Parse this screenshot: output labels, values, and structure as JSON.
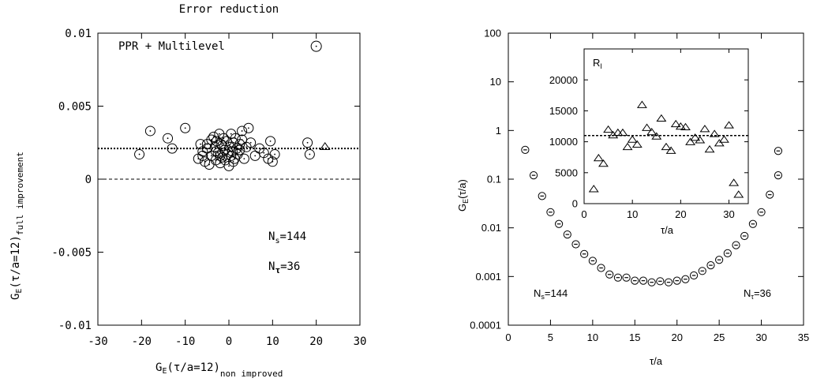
{
  "chart_data": [
    {
      "type": "scatter",
      "title": "Error reduction",
      "xlabel": "G_E(τ/a=12) non improved",
      "xlabel_parts": {
        "main": "G",
        "sub1": "E",
        "mid": "(τ/a=12)",
        "sub2": "non improved"
      },
      "ylabel": "G_E(τ/a=12) full improvement",
      "ylabel_parts": {
        "main": "G",
        "sub1": "E",
        "mid": "(τ/a=12)",
        "sub2": "full improvement"
      },
      "xlim": [
        -30,
        30
      ],
      "ylim": [
        -0.01,
        0.01
      ],
      "xticks": [
        -30,
        -20,
        -10,
        0,
        10,
        20,
        30
      ],
      "yticks": [
        -0.01,
        -0.005,
        0,
        0.005,
        0.01
      ],
      "xtick_labels": [
        "-30",
        "-20",
        "-10",
        "0",
        "10",
        "20",
        "30"
      ],
      "ytick_labels": [
        "-0.01",
        "-0.005",
        "0",
        "0.005",
        "0.01"
      ],
      "hlines": [
        {
          "y": 0.0021,
          "style": "dotted",
          "width": 2
        },
        {
          "y": 0.0,
          "style": "dashed",
          "width": 1
        }
      ],
      "annotations": [
        {
          "id": "legend",
          "text": "PPR + Multilevel"
        },
        {
          "id": "ns",
          "main": "N",
          "sub": "s",
          "rest": "=144"
        },
        {
          "id": "nt",
          "main": "N",
          "sub": "τ",
          "rest": "=36"
        }
      ],
      "legend_marker": {
        "x": 20,
        "y": 0.0091,
        "marker": "circle-dot"
      },
      "series": [
        {
          "marker": "circle-dot",
          "points": [
            [
              -20.5,
              0.0017
            ],
            [
              -18,
              0.0033
            ],
            [
              -14,
              0.0028
            ],
            [
              -13,
              0.0021
            ],
            [
              -10,
              0.0035
            ],
            [
              -7,
              0.0014
            ],
            [
              -6.5,
              0.0024
            ],
            [
              -6,
              0.0019
            ],
            [
              -5.5,
              0.0012
            ],
            [
              -5,
              0.0021
            ],
            [
              -4.5,
              0.001
            ],
            [
              -4,
              0.0016
            ],
            [
              -3.5,
              0.0029
            ],
            [
              -3.2,
              0.0022
            ],
            [
              -3,
              0.0013
            ],
            [
              -2.8,
              0.0026
            ],
            [
              -2.5,
              0.0018
            ],
            [
              -2.2,
              0.0031
            ],
            [
              -2,
              0.0011
            ],
            [
              -1.8,
              0.0024
            ],
            [
              -1.5,
              0.0015
            ],
            [
              -1.2,
              0.0028
            ],
            [
              -1,
              0.002
            ],
            [
              -0.8,
              0.0013
            ],
            [
              -0.5,
              0.0026
            ],
            [
              -0.3,
              0.0017
            ],
            [
              0,
              0.0009
            ],
            [
              0.2,
              0.0022
            ],
            [
              0.5,
              0.0031
            ],
            [
              0.8,
              0.0019
            ],
            [
              1,
              0.0025
            ],
            [
              1.3,
              0.0014
            ],
            [
              1.5,
              0.0028
            ],
            [
              1.8,
              0.0021
            ],
            [
              2,
              0.0017
            ],
            [
              2.5,
              0.0024
            ],
            [
              3,
              0.0033
            ],
            [
              3.5,
              0.0014
            ],
            [
              4,
              0.0022
            ],
            [
              4.5,
              0.0035
            ],
            [
              5,
              0.0025
            ],
            [
              6,
              0.0016
            ],
            [
              7,
              0.0021
            ],
            [
              8,
              0.0018
            ],
            [
              9,
              0.0014
            ],
            [
              9.5,
              0.0026
            ],
            [
              10,
              0.0012
            ],
            [
              10.5,
              0.0017
            ],
            [
              18,
              0.0025
            ],
            [
              18.5,
              0.0017
            ],
            [
              -5,
              0.0024
            ],
            [
              -3,
              0.0019
            ],
            [
              -1.5,
              0.0023
            ],
            [
              0.5,
              0.0016
            ],
            [
              2.5,
              0.002
            ],
            [
              -4,
              0.0027
            ],
            [
              1,
              0.0012
            ],
            [
              -2,
              0.0016
            ],
            [
              3,
              0.0027
            ],
            [
              -6,
              0.0016
            ]
          ]
        },
        {
          "marker": "triangle",
          "points": [
            [
              22,
              0.0022
            ]
          ]
        }
      ]
    },
    {
      "type": "scatter",
      "xlabel": "τ/a",
      "ylabel": "G_E(τ/a)",
      "ylabel_parts": {
        "main": "G",
        "sub1": "E",
        "mid": "(τ/a)"
      },
      "xscale": "linear",
      "yscale": "log",
      "xlim": [
        0,
        35
      ],
      "ylim": [
        0.0001,
        100
      ],
      "xticks": [
        0,
        5,
        10,
        15,
        20,
        25,
        30,
        35
      ],
      "yticks": [
        0.0001,
        0.001,
        0.01,
        0.1,
        1,
        10,
        100
      ],
      "xtick_labels": [
        "0",
        "5",
        "10",
        "15",
        "20",
        "25",
        "30",
        "35"
      ],
      "ytick_labels": [
        "0.0001",
        "0.001",
        "0.01",
        "0.1",
        "1",
        "10",
        "100"
      ],
      "annotations": [
        {
          "id": "ns",
          "main": "N",
          "sub": "s",
          "rest": "=144"
        },
        {
          "id": "nt",
          "main": "N",
          "sub": "τ",
          "rest": "=36"
        }
      ],
      "series": [
        {
          "marker": "circle-bar",
          "x": [
            2,
            3,
            4,
            5,
            6,
            7,
            8,
            9,
            10,
            11,
            12,
            13,
            14,
            15,
            16,
            17,
            18,
            19,
            20,
            21,
            22,
            23,
            24,
            25,
            26,
            27,
            28,
            29,
            30,
            31,
            32
          ],
          "y": [
            0.4,
            0.12,
            0.045,
            0.021,
            0.012,
            0.0073,
            0.0046,
            0.0029,
            0.0021,
            0.0015,
            0.0011,
            0.00095,
            0.00095,
            0.00082,
            0.00082,
            0.00076,
            0.0008,
            0.00076,
            0.00082,
            0.00088,
            0.00105,
            0.0013,
            0.0017,
            0.0022,
            0.003,
            0.0044,
            0.0068,
            0.012,
            0.021,
            0.048,
            0.12
          ]
        }
      ],
      "series_note": "last point",
      "extra_point": {
        "x": 32,
        "y": 0.38
      },
      "inset": {
        "type": "scatter",
        "title": "R_I",
        "title_parts": {
          "main": "R",
          "sub": "I"
        },
        "xlabel": "τ/a",
        "xlim": [
          0,
          34
        ],
        "ylim": [
          0,
          25000
        ],
        "xticks": [
          0,
          10,
          20,
          30
        ],
        "yticks": [
          0,
          5000,
          10000,
          15000,
          20000
        ],
        "xtick_labels": [
          "0",
          "10",
          "20",
          "30"
        ],
        "ytick_labels": [
          "0",
          "5000",
          "10000",
          "15000",
          "20000"
        ],
        "hline": {
          "y": 11000,
          "style": "dashed"
        },
        "series": [
          {
            "marker": "triangle",
            "x": [
              2,
              3,
              4,
              5,
              6,
              7,
              8,
              9,
              10,
              11,
              12,
              13,
              14,
              15,
              16,
              17,
              18,
              19,
              20,
              21,
              22,
              23,
              24,
              25,
              26,
              27,
              28,
              29,
              30,
              31,
              32
            ],
            "y": [
              2300,
              7300,
              6400,
              11900,
              11000,
              11400,
              11400,
              9100,
              10300,
              9500,
              15900,
              12200,
              11500,
              10800,
              13700,
              9100,
              8500,
              12800,
              12400,
              12300,
              9900,
              10600,
              10200,
              12000,
              8700,
              11200,
              9700,
              10300,
              12600,
              3300,
              1400
            ]
          }
        ]
      }
    }
  ]
}
